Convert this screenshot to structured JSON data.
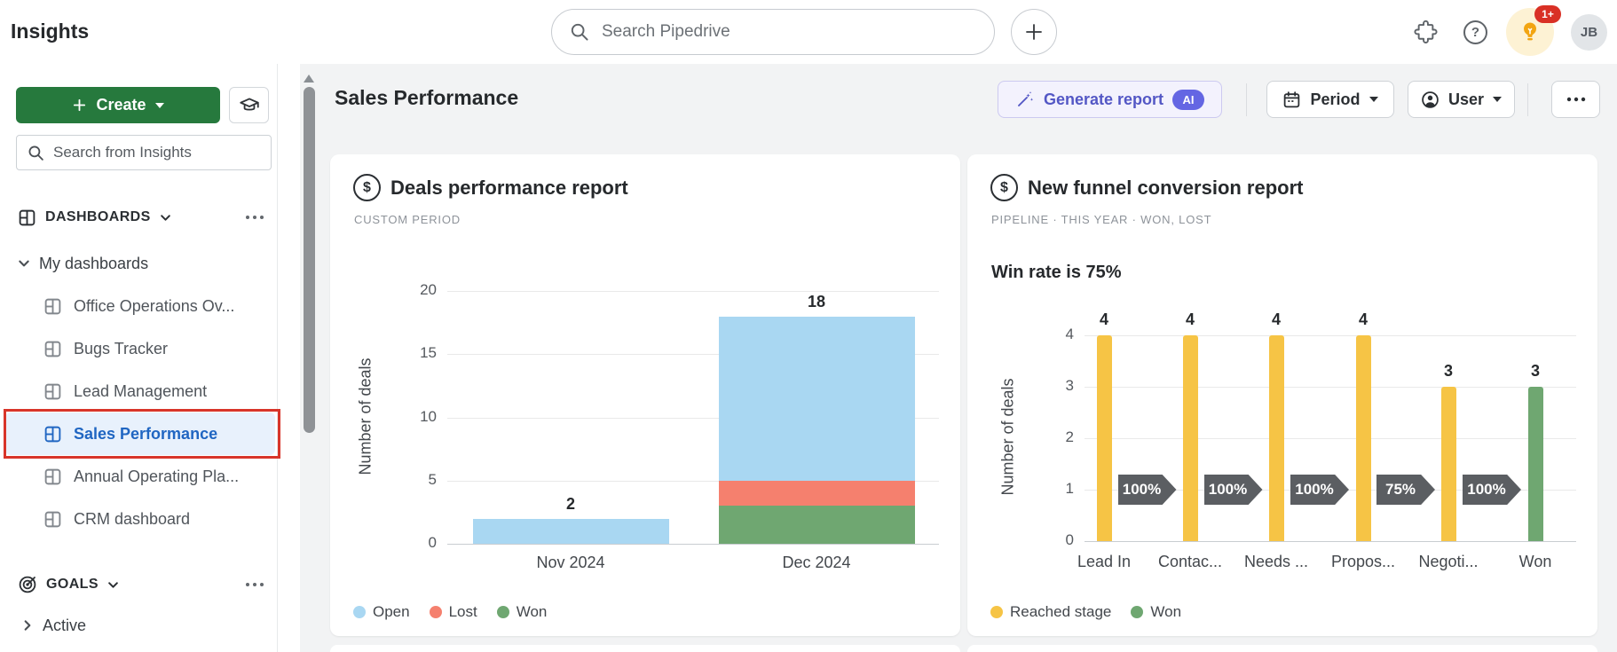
{
  "topbar": {
    "app_title": "Insights",
    "search_placeholder": "Search Pipedrive",
    "notification_count": "1+",
    "avatar_initials": "JB"
  },
  "icons": {
    "help_glyph": "?",
    "value_symbol": "$"
  },
  "sidebar": {
    "create_button": "Create",
    "search_placeholder": "Search from Insights",
    "dashboards_section": "DASHBOARDS",
    "my_dashboards": "My dashboards",
    "dashboard_items": [
      {
        "label": "Office Operations Ov...",
        "active": false,
        "annotated": false
      },
      {
        "label": "Bugs Tracker",
        "active": false,
        "annotated": false
      },
      {
        "label": "Lead Management",
        "active": false,
        "annotated": false
      },
      {
        "label": "Sales Performance",
        "active": true,
        "annotated": true
      },
      {
        "label": "Annual Operating Pla...",
        "active": false,
        "annotated": false
      },
      {
        "label": "CRM dashboard",
        "active": false,
        "annotated": false
      }
    ],
    "goals_section": "GOALS",
    "goals_items": [
      {
        "label": "Active"
      }
    ]
  },
  "header": {
    "page_title": "Sales Performance",
    "generate_report": "Generate report",
    "ai_badge": "AI",
    "period_filter": "Period",
    "user_filter": "User"
  },
  "chart_data": [
    {
      "type": "bar",
      "stacked": true,
      "title": "Deals performance report",
      "subtitle": "CUSTOM PERIOD",
      "categories": [
        "Nov 2024",
        "Dec 2024"
      ],
      "series": [
        {
          "name": "Won",
          "color": "#6FA771",
          "values": [
            0,
            3
          ]
        },
        {
          "name": "Lost",
          "color": "#F5806E",
          "values": [
            0,
            2
          ]
        },
        {
          "name": "Open",
          "color": "#A9D7F2",
          "values": [
            2,
            13
          ]
        }
      ],
      "totals": [
        2,
        18
      ],
      "xlabel": "",
      "ylabel": "Number of deals",
      "yticks": [
        0,
        5,
        10,
        15,
        20
      ],
      "ylim": [
        0,
        20
      ],
      "grid": true,
      "legend_position": "bottom",
      "legend": [
        {
          "label": "Open",
          "color": "#A9D7F2"
        },
        {
          "label": "Lost",
          "color": "#F5806E"
        },
        {
          "label": "Won",
          "color": "#6FA771"
        }
      ]
    },
    {
      "type": "bar",
      "stacked": false,
      "title": "New funnel conversion report",
      "subtitle_parts": [
        "PIPELINE",
        "THIS YEAR",
        "WON, LOST"
      ],
      "headline": "Win rate is 75%",
      "categories": [
        "Lead In",
        "Contac...",
        "Needs ...",
        "Propos...",
        "Negoti...",
        "Won"
      ],
      "values": [
        4,
        4,
        4,
        4,
        3,
        3
      ],
      "bar_colors": [
        "#F6C445",
        "#F6C445",
        "#F6C445",
        "#F6C445",
        "#F6C445",
        "#6FA771"
      ],
      "conversions": [
        "100%",
        "100%",
        "100%",
        "75%",
        "100%"
      ],
      "xlabel": "",
      "ylabel": "Number of deals",
      "yticks": [
        0,
        1,
        2,
        3,
        4
      ],
      "ylim": [
        0,
        4
      ],
      "grid": true,
      "legend_position": "bottom",
      "legend": [
        {
          "label": "Reached stage",
          "color": "#F6C445"
        },
        {
          "label": "Won",
          "color": "#6FA771"
        }
      ]
    }
  ]
}
